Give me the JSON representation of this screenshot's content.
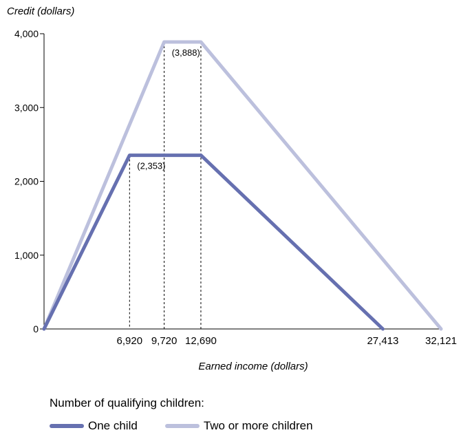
{
  "chart_data": {
    "type": "line",
    "title": "",
    "ylabel": "Credit (dollars)",
    "xlabel": "Earned income (dollars)",
    "ylim": [
      0,
      4000
    ],
    "xlim": [
      0,
      32121
    ],
    "y_ticks": [
      {
        "value": 0,
        "label": "0"
      },
      {
        "value": 1000,
        "label": "1,000"
      },
      {
        "value": 2000,
        "label": "2,000"
      },
      {
        "value": 3000,
        "label": "3,000"
      },
      {
        "value": 4000,
        "label": "4,000"
      }
    ],
    "x_ticks": [
      {
        "value": 6920,
        "label": "6,920"
      },
      {
        "value": 9720,
        "label": "9,720"
      },
      {
        "value": 12690,
        "label": "12,690"
      },
      {
        "value": 27413,
        "label": "27,413"
      },
      {
        "value": 32121,
        "label": "32,121"
      }
    ],
    "series": [
      {
        "name": "One child",
        "color": "#6670b0",
        "points": [
          [
            0,
            0
          ],
          [
            6920,
            2353
          ],
          [
            12690,
            2353
          ],
          [
            27413,
            0
          ]
        ]
      },
      {
        "name": "Two or more children",
        "color": "#bcc0dd",
        "points": [
          [
            0,
            0
          ],
          [
            9720,
            3888
          ],
          [
            12690,
            3888
          ],
          [
            32121,
            0
          ]
        ]
      }
    ],
    "annotations": [
      {
        "x": 6920,
        "y": 2353,
        "text": "(2,353)"
      },
      {
        "x": 9720,
        "y": 3888,
        "text": "(3,888)"
      }
    ],
    "reference_lines": [
      {
        "x": 6920,
        "y_top": 2353
      },
      {
        "x": 9720,
        "y_top": 3888
      },
      {
        "x": 12690,
        "y_top": 3888
      }
    ],
    "legend_title": "Number of qualifying children:",
    "legend_position": "bottom-left",
    "grid": false
  }
}
